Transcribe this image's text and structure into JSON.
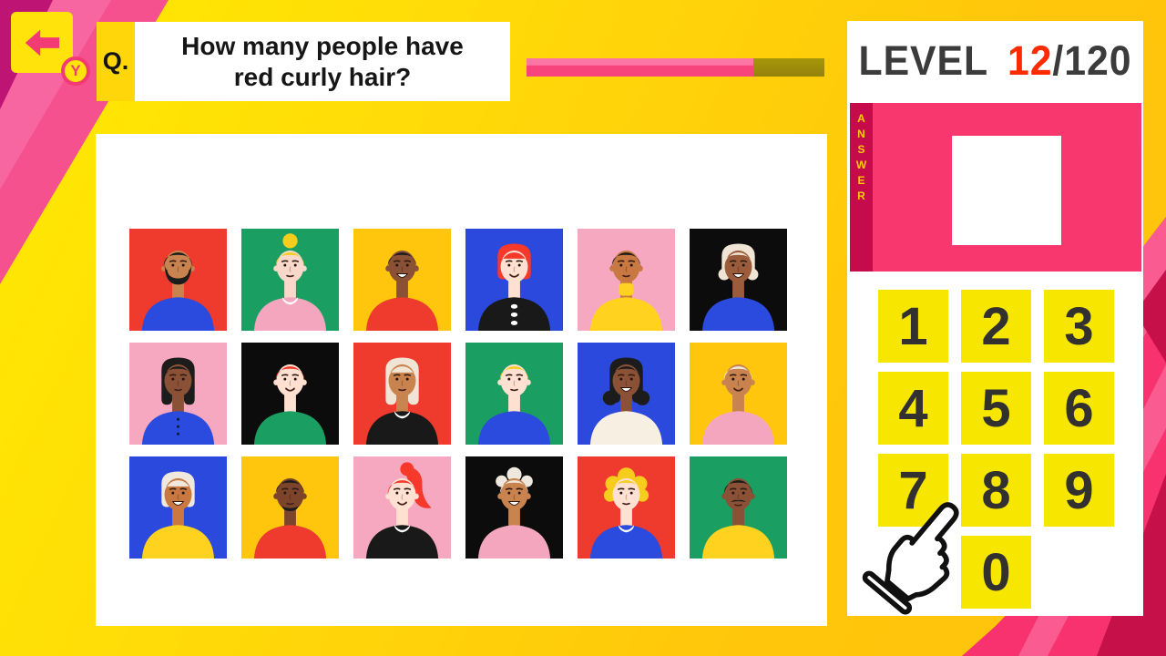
{
  "toolbar": {
    "back_badge_label": "Y"
  },
  "question": {
    "prefix": "Q.",
    "lines": [
      "How many people have",
      "red curly hair?"
    ]
  },
  "progress": {
    "percent": 76,
    "fill_color": "#F8447D",
    "track_color": "#9C8B05"
  },
  "level": {
    "label": "LEVEL",
    "current": "12",
    "separator": "/",
    "total": "120"
  },
  "answer": {
    "label": "ANSWER",
    "value": ""
  },
  "numpad": {
    "keys": [
      "1",
      "2",
      "3",
      "4",
      "5",
      "6",
      "7",
      "8",
      "9",
      "0"
    ],
    "cursor_pointing_at_key": "8"
  },
  "palette": {
    "red": "#EF3A2E",
    "green": "#1A9E62",
    "yellow": "#FFC60D",
    "blue": "#2B49DC",
    "pink": "#F5A8C0",
    "black": "#0C0C0C",
    "skin_light": "#FFE0D1",
    "skin_fair": "#F8D8C8",
    "skin_tan": "#C8834F",
    "skin_tan_orange": "#C87840",
    "skin_brown": "#9A5C3B",
    "skin_dark": "#8A5136",
    "skin_deep": "#7C442B",
    "hair_black": "#1C1C1C",
    "hair_blonde": "#F6CC1D",
    "hair_red": "#F7392B",
    "hair_platinum": "#F0E4D4",
    "hair_white": "#EFE8DE",
    "shirt_blue": "#2B4BDE",
    "shirt_pink": "#F3A6BE",
    "shirt_red": "#EF3A2E",
    "shirt_green": "#1A9E62",
    "shirt_yellow": "#FFD21F",
    "shirt_cream": "#F6EFE2",
    "shirt_black": "#191919"
  },
  "people": [
    {
      "row": 1,
      "col": 1,
      "bg": "red",
      "skin": "skin_tan",
      "hair": "short",
      "hair_color": "hair_black",
      "facial": "beard",
      "shirt": "plain",
      "shirt_color": "shirt_blue",
      "mouth": "neutral"
    },
    {
      "row": 1,
      "col": 2,
      "bg": "green",
      "skin": "skin_fair",
      "hair": "bun",
      "hair_color": "hair_blonde",
      "facial": "none",
      "shirt": "collar",
      "shirt_color": "shirt_pink",
      "mouth": "neutral"
    },
    {
      "row": 1,
      "col": 3,
      "bg": "yellow",
      "skin": "skin_dark",
      "hair": "short",
      "hair_color": "hair_black",
      "facial": "none",
      "shirt": "plain",
      "shirt_color": "shirt_red",
      "mouth": "big"
    },
    {
      "row": 1,
      "col": 4,
      "bg": "blue",
      "skin": "skin_light",
      "hair": "bob_bangs",
      "hair_color": "hair_red",
      "facial": "none",
      "shirt": "dots",
      "shirt_color": "shirt_black",
      "mouth": "smile"
    },
    {
      "row": 1,
      "col": 5,
      "bg": "pink",
      "skin": "skin_tan_orange",
      "hair": "short",
      "hair_color": "hair_black",
      "facial": "none",
      "shirt": "turtleneck",
      "shirt_color": "shirt_yellow",
      "mouth": "neutral"
    },
    {
      "row": 1,
      "col": 6,
      "bg": "black",
      "skin": "skin_brown",
      "hair": "bob_wavy",
      "hair_color": "hair_platinum",
      "facial": "none",
      "shirt": "plain",
      "shirt_color": "shirt_blue",
      "mouth": "big"
    },
    {
      "row": 2,
      "col": 1,
      "bg": "pink",
      "skin": "skin_dark",
      "hair": "long",
      "hair_color": "hair_black",
      "facial": "none",
      "shirt": "buttons",
      "shirt_color": "shirt_blue",
      "mouth": "neutral"
    },
    {
      "row": 2,
      "col": 2,
      "bg": "black",
      "skin": "skin_light",
      "hair": "short",
      "hair_color": "hair_red",
      "facial": "none",
      "shirt": "plain",
      "shirt_color": "shirt_green",
      "mouth": "smile"
    },
    {
      "row": 2,
      "col": 3,
      "bg": "red",
      "skin": "skin_tan",
      "hair": "long_bangs",
      "hair_color": "hair_platinum",
      "facial": "none",
      "shirt": "collar",
      "shirt_color": "shirt_black",
      "mouth": "neutral"
    },
    {
      "row": 2,
      "col": 4,
      "bg": "green",
      "skin": "skin_light",
      "hair": "short",
      "hair_color": "hair_blonde",
      "facial": "none",
      "shirt": "plain",
      "shirt_color": "shirt_blue",
      "mouth": "neutral"
    },
    {
      "row": 2,
      "col": 5,
      "bg": "blue",
      "skin": "skin_dark",
      "hair": "long_wavy",
      "hair_color": "hair_black",
      "facial": "none",
      "shirt": "plain",
      "shirt_color": "shirt_cream",
      "mouth": "big"
    },
    {
      "row": 2,
      "col": 6,
      "bg": "yellow",
      "skin": "skin_tan",
      "hair": "short",
      "hair_color": "hair_white",
      "facial": "none",
      "shirt": "plain",
      "shirt_color": "shirt_pink",
      "mouth": "smile"
    },
    {
      "row": 3,
      "col": 1,
      "bg": "blue",
      "skin": "skin_tan_orange",
      "hair": "bob_bangs",
      "hair_color": "hair_white",
      "facial": "none",
      "shirt": "plain",
      "shirt_color": "shirt_yellow",
      "mouth": "big"
    },
    {
      "row": 3,
      "col": 2,
      "bg": "yellow",
      "skin": "skin_deep",
      "hair": "short",
      "hair_color": "hair_black",
      "facial": "chin",
      "shirt": "plain",
      "shirt_color": "shirt_red",
      "mouth": "neutral"
    },
    {
      "row": 3,
      "col": 3,
      "bg": "pink",
      "skin": "skin_light",
      "hair": "ponytail",
      "hair_color": "hair_red",
      "facial": "none",
      "shirt": "collar",
      "shirt_color": "shirt_black",
      "mouth": "smile"
    },
    {
      "row": 3,
      "col": 4,
      "bg": "black",
      "skin": "skin_tan",
      "hair": "short_curly",
      "hair_color": "hair_white",
      "facial": "none",
      "shirt": "plain",
      "shirt_color": "shirt_pink",
      "mouth": "big"
    },
    {
      "row": 3,
      "col": 5,
      "bg": "red",
      "skin": "skin_light",
      "hair": "curly",
      "hair_color": "hair_blonde",
      "facial": "none",
      "shirt": "collar",
      "shirt_color": "shirt_blue",
      "mouth": "neutral"
    },
    {
      "row": 3,
      "col": 6,
      "bg": "green",
      "skin": "skin_dark",
      "hair": "short",
      "hair_color": "hair_black",
      "facial": "mustache",
      "shirt": "plain",
      "shirt_color": "shirt_yellow",
      "mouth": "neutral"
    }
  ]
}
